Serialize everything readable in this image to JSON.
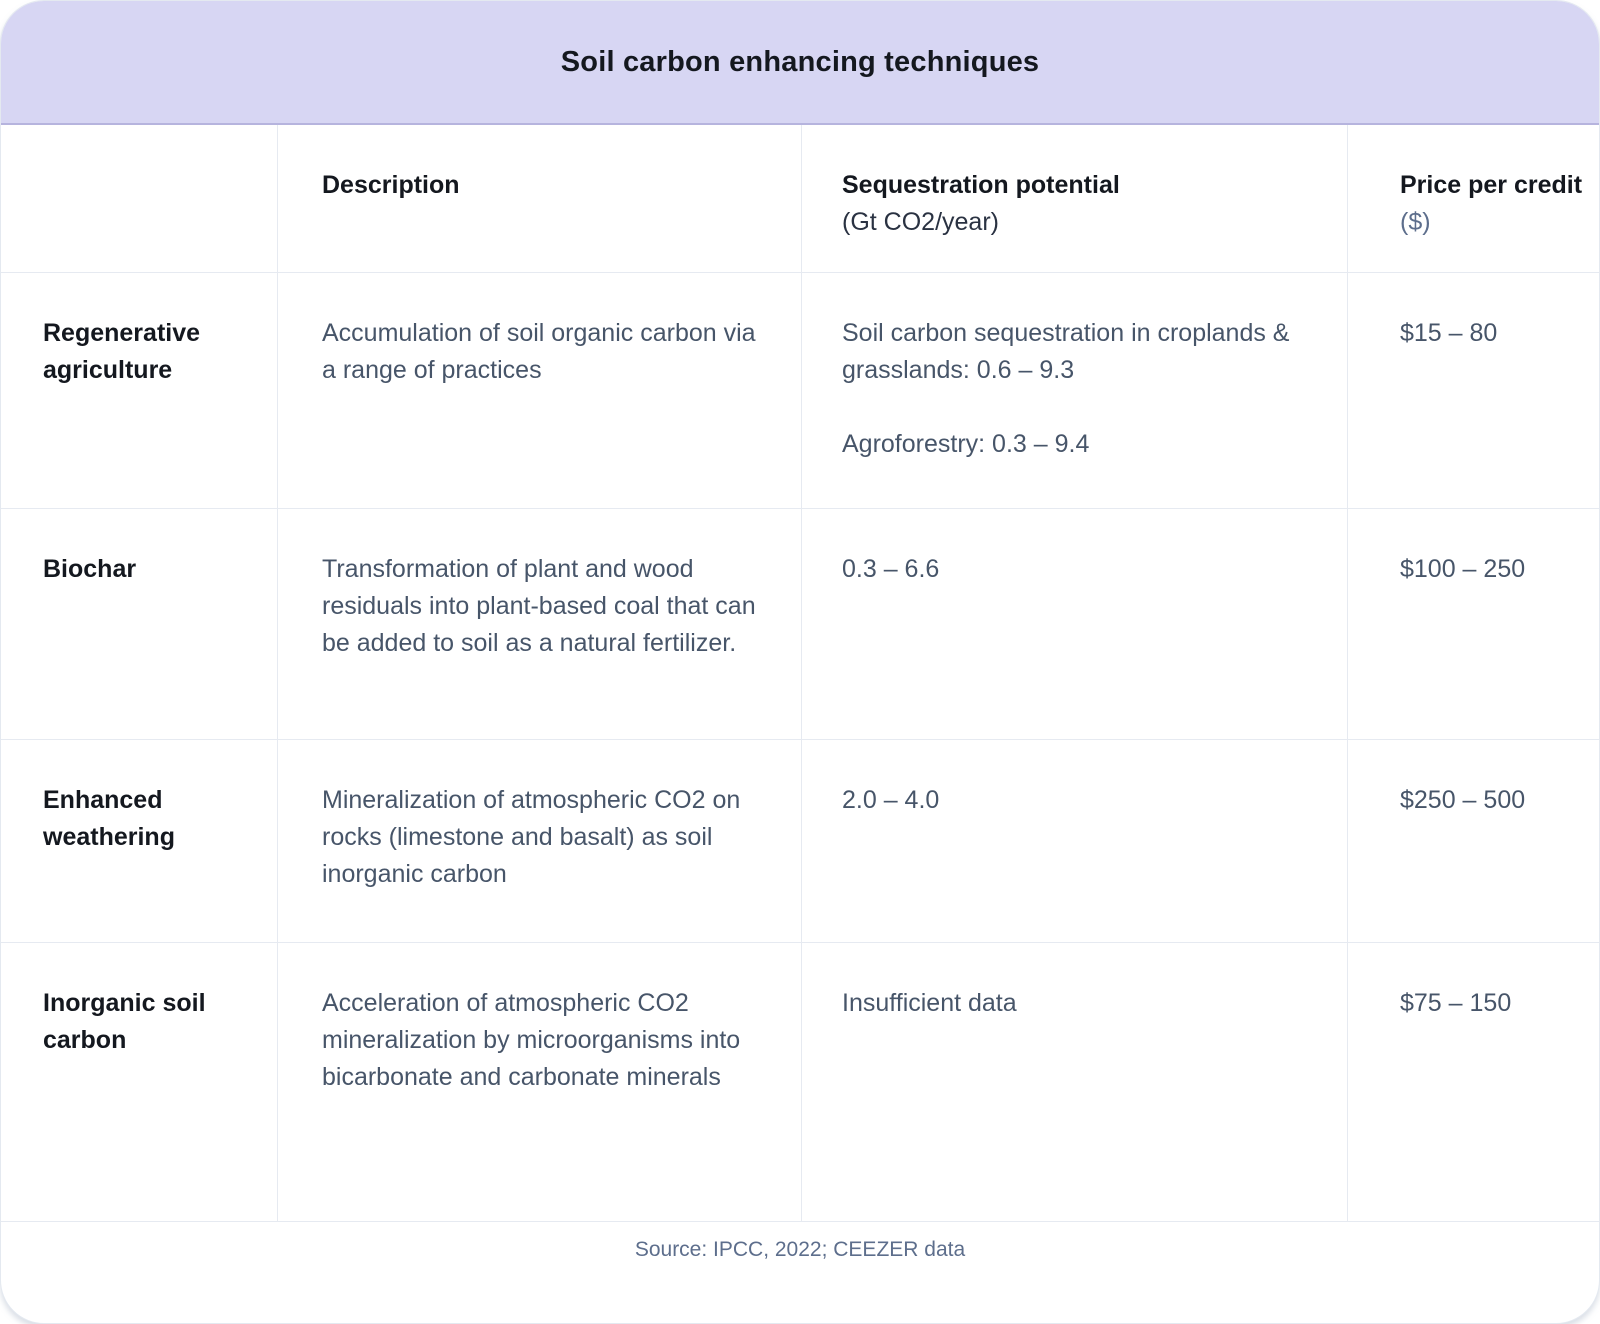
{
  "colors": {
    "band_background": "#d7d6f3",
    "band_divider": "#b6b4de",
    "grid_line": "#e6eaf1",
    "heading_text": "#14181f",
    "body_text": "#475569",
    "muted_text": "#5d6e8c"
  },
  "chart_data": {
    "type": "table",
    "title": "Soil carbon enhancing techniques",
    "columns": {
      "technique": "",
      "description": "Description",
      "sequestration": "Sequestration potential",
      "sequestration_unit": "(Gt CO2/year)",
      "price": "Price per credit",
      "price_unit": "($)"
    },
    "rows": [
      {
        "technique": "Regenerative agriculture",
        "description": "Accumulation of soil organic carbon via a range of practices",
        "sequestration": [
          "Soil carbon sequestration in croplands & grasslands: 0.6 – 9.3",
          "Agroforestry: 0.3 – 9.4"
        ],
        "price": "$15 – 80"
      },
      {
        "technique": "Biochar",
        "description": "Transformation of plant and wood residuals into plant-based coal that can be added to soil as a natural fertilizer.",
        "sequestration": [
          "0.3 – 6.6"
        ],
        "price": "$100 – 250"
      },
      {
        "technique": "Enhanced weathering",
        "description": "Mineralization of atmospheric CO2 on rocks (limestone and basalt) as soil inorganic carbon",
        "sequestration": [
          "2.0 – 4.0"
        ],
        "price": "$250 – 500"
      },
      {
        "technique": "Inorganic soil carbon",
        "description": "Acceleration of atmospheric CO2 mineralization by microorganisms into bicarbonate and carbonate minerals",
        "sequestration": [
          "Insufficient data"
        ],
        "price": "$75 – 150"
      }
    ],
    "source": "Source: IPCC, 2022; CEEZER data"
  }
}
